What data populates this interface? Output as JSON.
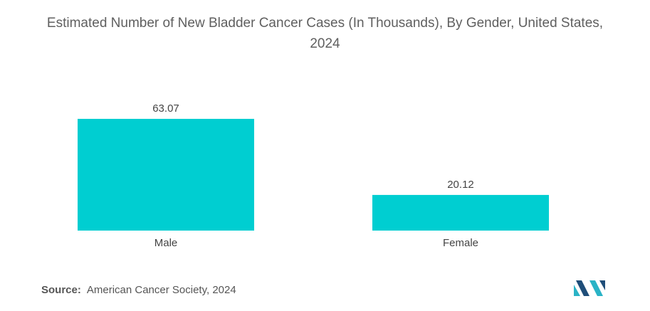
{
  "title_line1": "Estimated Number of New Bladder Cancer Cases (In Thousands), By Gender, United States,",
  "title_line2": "2024",
  "source": {
    "label": "Source:",
    "text": "American Cancer Society, 2024"
  },
  "colors": {
    "bar": "#00CED1",
    "logo_dark": "#1f4e79",
    "logo_light": "#2ab3c6"
  },
  "logo_icon": "mordor-intelligence-logo",
  "chart_data": {
    "type": "bar",
    "title": "Estimated Number of New Bladder Cancer Cases (In Thousands), By Gender, United States, 2024",
    "categories": [
      "Male",
      "Female"
    ],
    "values": [
      63.07,
      20.12
    ],
    "value_labels": [
      "63.07",
      "20.12"
    ],
    "xlabel": "",
    "ylabel": "",
    "ylim": [
      0,
      63.07
    ],
    "grid": false,
    "legend": "none"
  }
}
